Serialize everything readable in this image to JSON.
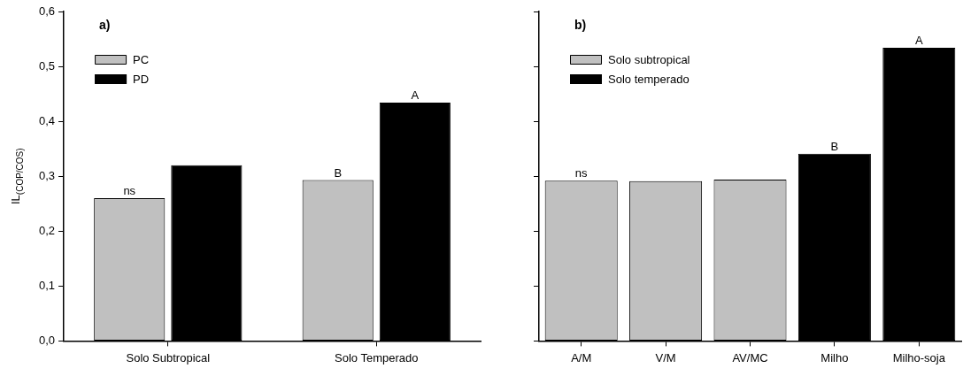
{
  "chart_data": [
    {
      "type": "bar",
      "ylabel": "IL$_{(COP/COS)}$",
      "categories": [
        "Solo Subtropical",
        "Solo Temperado"
      ],
      "series": [
        {
          "name": "PC",
          "color": "#c0c0c0",
          "values": [
            0.26,
            0.293
          ]
        },
        {
          "name": "PD",
          "color": "#000000",
          "values": [
            0.32,
            0.434
          ]
        }
      ],
      "ylim": [
        0,
        0.6
      ],
      "yticks": [
        {
          "value": 0,
          "label": "0,0"
        },
        {
          "value": 0.1,
          "label": "0,1"
        },
        {
          "value": 0.2,
          "label": "0,2"
        },
        {
          "value": 0.3,
          "label": "0,3"
        },
        {
          "value": 0.4,
          "label": "0,4"
        },
        {
          "value": 0.5,
          "label": "0,5"
        },
        {
          "value": 0.6,
          "label": "0,6"
        }
      ],
      "legend": "top left",
      "grid": false,
      "annotations": [
        "a)",
        {
          "text": "ns",
          "x": "Solo Subtropical",
          "y": 0.26
        },
        "B",
        "A"
      ]
    },
    {
      "type": "bar",
      "categories": [
        "A/M",
        "V/M",
        "AV/MC",
        "Milho",
        "Milho-soja"
      ],
      "series": [
        {
          "name": "Solo subtropical",
          "color": "#c0c0c0",
          "values": [
            0.292,
            0.291,
            0.294,
            null,
            null
          ]
        },
        {
          "name": "Solo temperado",
          "color": "#000000",
          "values": [
            null,
            null,
            null,
            0.341,
            0.534
          ]
        }
      ],
      "ylim": [
        0,
        0.6
      ],
      "yticks": [
        {
          "value": 0,
          "label": null
        },
        {
          "value": 0.1,
          "label": null
        },
        {
          "value": 0.2,
          "label": null
        },
        {
          "value": 0.3,
          "label": null
        },
        {
          "value": 0.4,
          "label": null
        },
        {
          "value": 0.5,
          "label": null
        },
        {
          "value": 0.6,
          "label": null
        }
      ],
      "tick_labels": "x",
      "legend": "top left",
      "grid": false,
      "annotations": [
        "b)",
        {
          "text": "ns",
          "x": "A/M",
          "y": 0.292
        },
        {
          "text": "B",
          "x": "Milho",
          "y": 0.341
        },
        {
          "text": "A",
          "x": "Milho-soja",
          "y": 0.534
        }
      ]
    }
  ]
}
